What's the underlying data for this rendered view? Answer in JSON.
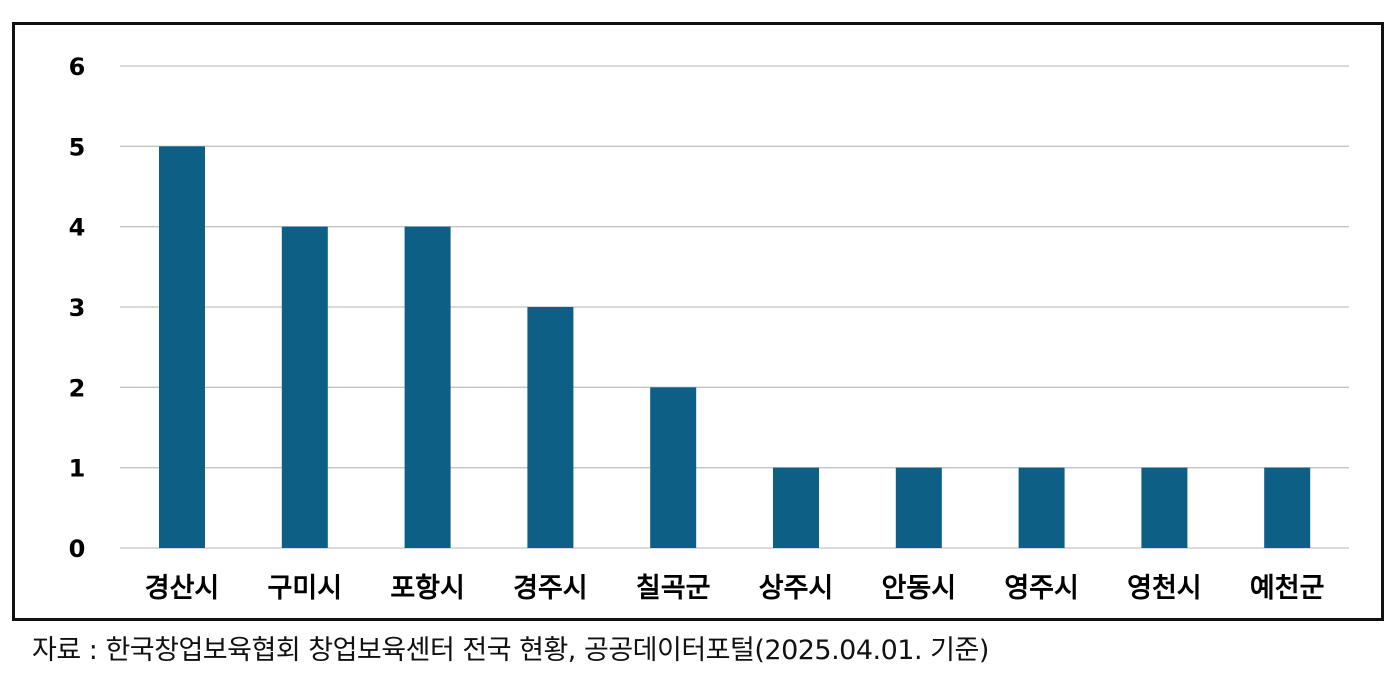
{
  "source_note": "자료 : 한국창업보육협회 창업보육센터 전국 현황, 공공데이터포털(2025.04.01. 기준)",
  "colors": {
    "bar": "#0d5f86",
    "grid": "#c4c4c4",
    "frame": "#111111"
  },
  "chart_data": {
    "type": "bar",
    "title": "",
    "xlabel": "",
    "ylabel": "",
    "categories": [
      "경산시",
      "구미시",
      "포항시",
      "경주시",
      "칠곡군",
      "상주시",
      "안동시",
      "영주시",
      "영천시",
      "예천군"
    ],
    "values": [
      5,
      4,
      4,
      3,
      2,
      1,
      1,
      1,
      1,
      1
    ],
    "ylim": [
      0,
      6
    ],
    "yticks": [
      0,
      1,
      2,
      3,
      4,
      5,
      6
    ],
    "grid": true,
    "legend": "none"
  }
}
